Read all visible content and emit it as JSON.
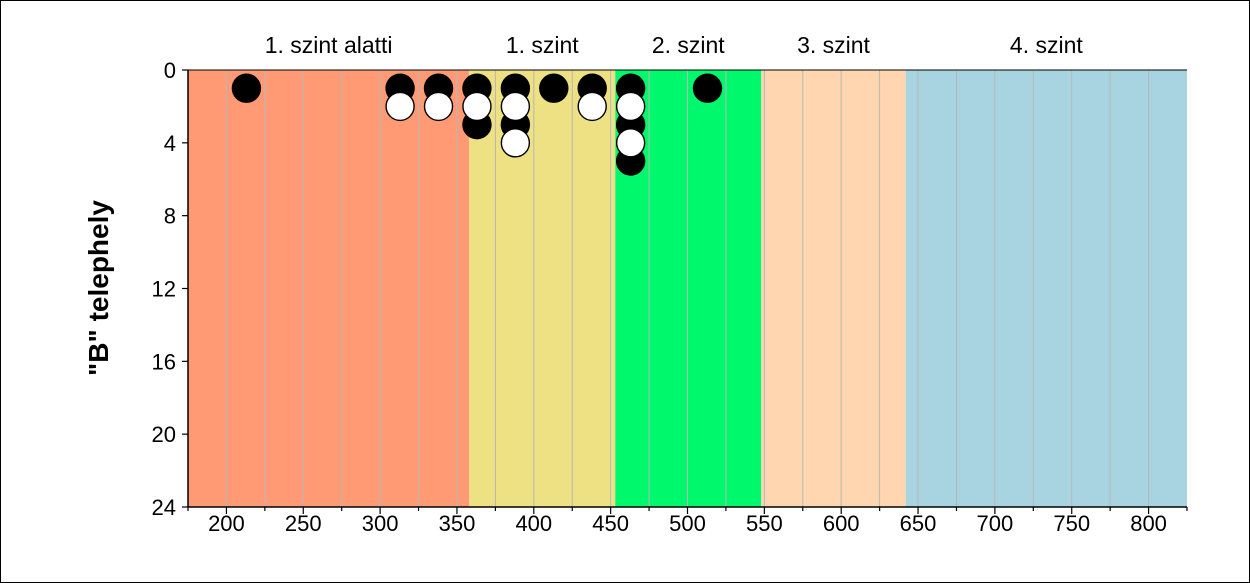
{
  "chart_data": {
    "type": "scatter",
    "title": "",
    "xlabel": "",
    "ylabel": "\"B\" telephely",
    "xlim": [
      175,
      825
    ],
    "ylim": [
      0,
      24
    ],
    "y_inverted": true,
    "xticks": [
      200,
      250,
      300,
      350,
      400,
      450,
      500,
      550,
      600,
      650,
      700,
      750,
      800
    ],
    "yticks": [
      0,
      4,
      8,
      12,
      16,
      20,
      24
    ],
    "grid": "vertical minor lines every 25",
    "bands": [
      {
        "label": "1. szint alatti",
        "from": 175,
        "to": 358,
        "color": "#FF9A74"
      },
      {
        "label": "1. szint",
        "from": 358,
        "to": 453,
        "color": "#EDE184"
      },
      {
        "label": "2. szint",
        "from": 453,
        "to": 548,
        "color": "#00F96C"
      },
      {
        "label": "3. szint",
        "from": 548,
        "to": 642,
        "color": "#FFD6B0"
      },
      {
        "label": "4. szint",
        "from": 642,
        "to": 825,
        "color": "#A8D4E2"
      }
    ],
    "series": [
      {
        "marker": "filled",
        "color": "#000000",
        "points": [
          {
            "x": 213,
            "y": 1
          },
          {
            "x": 313,
            "y": 1
          },
          {
            "x": 338,
            "y": 1
          },
          {
            "x": 363,
            "y": 1
          },
          {
            "x": 363,
            "y": 3
          },
          {
            "x": 388,
            "y": 1
          },
          {
            "x": 388,
            "y": 3
          },
          {
            "x": 413,
            "y": 1
          },
          {
            "x": 438,
            "y": 1
          },
          {
            "x": 463,
            "y": 1
          },
          {
            "x": 463,
            "y": 3
          },
          {
            "x": 463,
            "y": 5
          },
          {
            "x": 513,
            "y": 1
          }
        ]
      },
      {
        "marker": "open",
        "color": "#ffffff",
        "points": [
          {
            "x": 313,
            "y": 2
          },
          {
            "x": 338,
            "y": 2
          },
          {
            "x": 363,
            "y": 2
          },
          {
            "x": 388,
            "y": 2
          },
          {
            "x": 388,
            "y": 4
          },
          {
            "x": 438,
            "y": 2
          },
          {
            "x": 463,
            "y": 2
          },
          {
            "x": 463,
            "y": 4
          }
        ]
      }
    ]
  }
}
